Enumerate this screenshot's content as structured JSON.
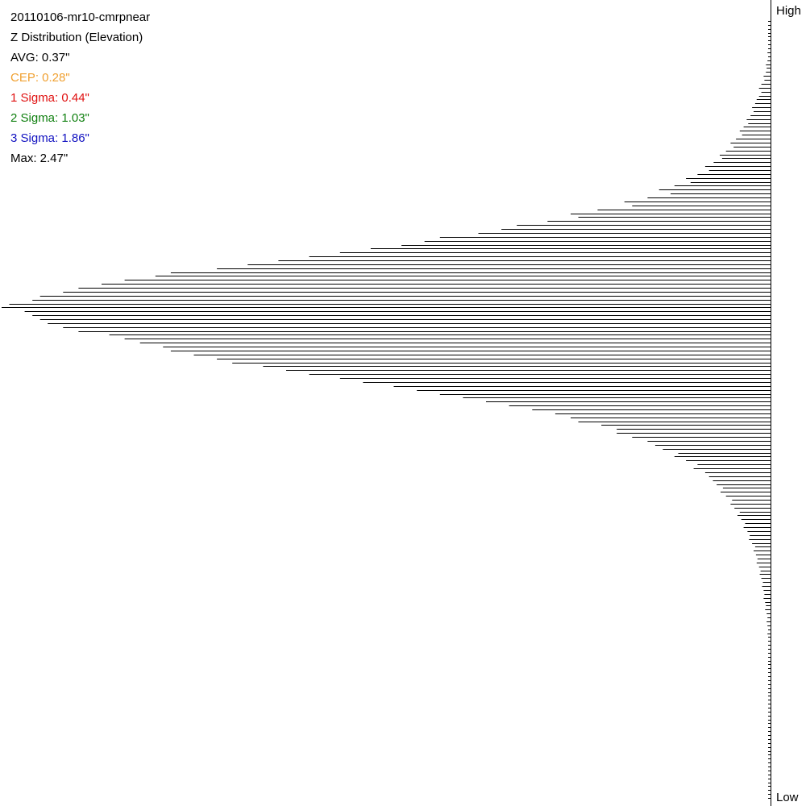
{
  "stats": [
    {
      "key": "name",
      "text": "20110106-mr10-cmrpnear",
      "color": "#000000"
    },
    {
      "key": "title",
      "text": "Z Distribution (Elevation)",
      "color": "#000000"
    },
    {
      "key": "avg",
      "text": "AVG: 0.37\"",
      "color": "#000000"
    },
    {
      "key": "cep",
      "text": "CEP: 0.28\"",
      "color": "#f0a030"
    },
    {
      "key": "sigma1",
      "text": "1 Sigma: 0.44\"",
      "color": "#e01010"
    },
    {
      "key": "sigma2",
      "text": "2 Sigma: 1.03\"",
      "color": "#108010"
    },
    {
      "key": "sigma3",
      "text": "3 Sigma: 1.86\"",
      "color": "#1010c0"
    },
    {
      "key": "max",
      "text": "Max: 2.47\"",
      "color": "#000000"
    }
  ],
  "axis": {
    "high_label": "High",
    "low_label": "Low"
  },
  "chart_data": {
    "type": "bar",
    "orientation": "horizontal",
    "title": "Z Distribution (Elevation)",
    "xlabel": "",
    "ylabel": "",
    "y_top_label": "High",
    "y_bottom_label": "Low",
    "note": "relative frequency per elevation bin, ordered from High (top) to Low (bottom); max = 1.0",
    "values": [
      0.001,
      0.001,
      0.002,
      0.002,
      0.001,
      0.002,
      0.002,
      0.003,
      0.004,
      0.003,
      0.004,
      0.006,
      0.005,
      0.006,
      0.009,
      0.008,
      0.012,
      0.015,
      0.012,
      0.015,
      0.018,
      0.02,
      0.024,
      0.022,
      0.026,
      0.031,
      0.029,
      0.035,
      0.04,
      0.037,
      0.045,
      0.052,
      0.048,
      0.058,
      0.066,
      0.063,
      0.074,
      0.085,
      0.08,
      0.095,
      0.11,
      0.104,
      0.125,
      0.145,
      0.13,
      0.16,
      0.19,
      0.18,
      0.225,
      0.26,
      0.25,
      0.29,
      0.33,
      0.35,
      0.38,
      0.43,
      0.45,
      0.48,
      0.52,
      0.56,
      0.6,
      0.64,
      0.68,
      0.72,
      0.78,
      0.8,
      0.84,
      0.87,
      0.9,
      0.92,
      0.95,
      0.96,
      0.99,
      1.0,
      0.97,
      0.96,
      0.95,
      0.94,
      0.92,
      0.9,
      0.86,
      0.84,
      0.82,
      0.79,
      0.78,
      0.75,
      0.72,
      0.7,
      0.66,
      0.63,
      0.6,
      0.56,
      0.53,
      0.49,
      0.46,
      0.43,
      0.4,
      0.37,
      0.34,
      0.31,
      0.28,
      0.26,
      0.25,
      0.22,
      0.2,
      0.2,
      0.18,
      0.16,
      0.15,
      0.14,
      0.12,
      0.125,
      0.11,
      0.095,
      0.1,
      0.085,
      0.08,
      0.075,
      0.07,
      0.062,
      0.065,
      0.058,
      0.05,
      0.052,
      0.047,
      0.04,
      0.043,
      0.038,
      0.033,
      0.035,
      0.03,
      0.027,
      0.028,
      0.024,
      0.02,
      0.022,
      0.019,
      0.017,
      0.018,
      0.015,
      0.013,
      0.014,
      0.012,
      0.01,
      0.011,
      0.009,
      0.008,
      0.009,
      0.007,
      0.006,
      0.007,
      0.005,
      0.004,
      0.005,
      0.004,
      0.003,
      0.004,
      0.003,
      0.002,
      0.003,
      0.002,
      0.002,
      0.002,
      0.001,
      0.002,
      0.001,
      0.001,
      0.001,
      0.001,
      0.001,
      0.001,
      0.001,
      0.001,
      0.001,
      0.001,
      0.001,
      0.001,
      0.001,
      0.001,
      0.001,
      0.001,
      0.001,
      0.001,
      0.001,
      0.001,
      0.001,
      0.001,
      0.001,
      0.001,
      0.001,
      0.001,
      0.001,
      0.001,
      0.001,
      0.001,
      0.001,
      0.001,
      0.001,
      0.001
    ]
  }
}
